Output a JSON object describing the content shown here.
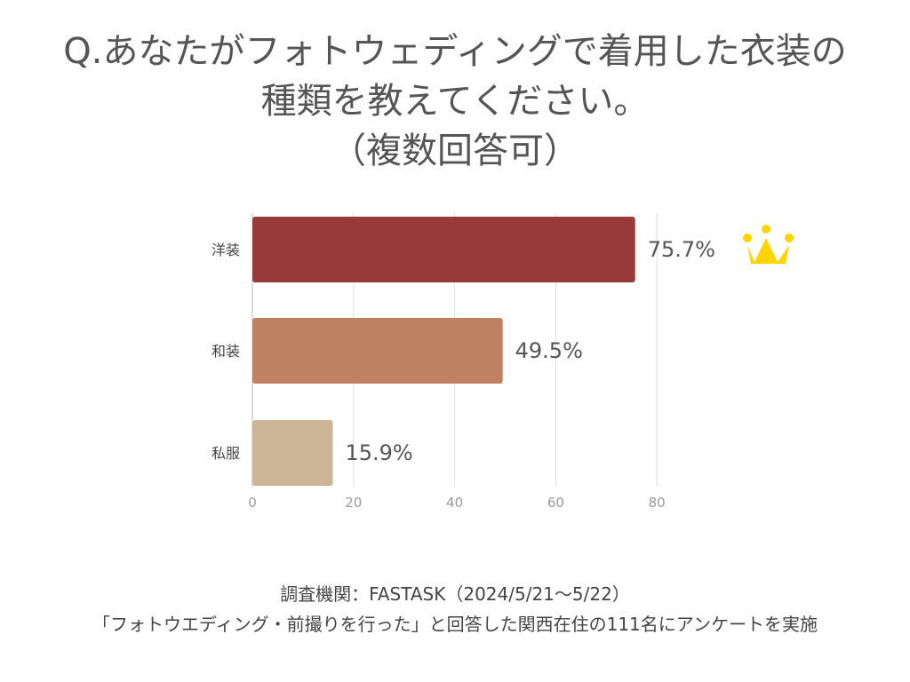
{
  "title": {
    "line1": "Q.あなたがフォトウェディングで着用した衣装の",
    "line2": "種類を教えてください。",
    "line3": "（複数回答可）"
  },
  "chart_data": {
    "type": "bar",
    "orientation": "horizontal",
    "categories": [
      "洋装",
      "和装",
      "私服"
    ],
    "values": [
      75.7,
      49.5,
      15.9
    ],
    "value_labels": [
      "75.7%",
      "49.5%",
      "15.9%"
    ],
    "colors": [
      "#983a3a",
      "#c08262",
      "#cdb697"
    ],
    "xlim": [
      0,
      80
    ],
    "xticks": [
      0,
      20,
      40,
      60,
      80
    ],
    "xtick_labels": [
      "0",
      "20",
      "40",
      "60",
      "80"
    ],
    "grid": true,
    "crown_icon": "crown-icon",
    "crown_color": "#ffd400"
  },
  "footer": {
    "line1": "調査機関：FASTASK（2024/5/21〜5/22）",
    "line2": "「フォトウエディング・前撮りを行った」と回答した関西在住の111名にアンケートを実施"
  }
}
